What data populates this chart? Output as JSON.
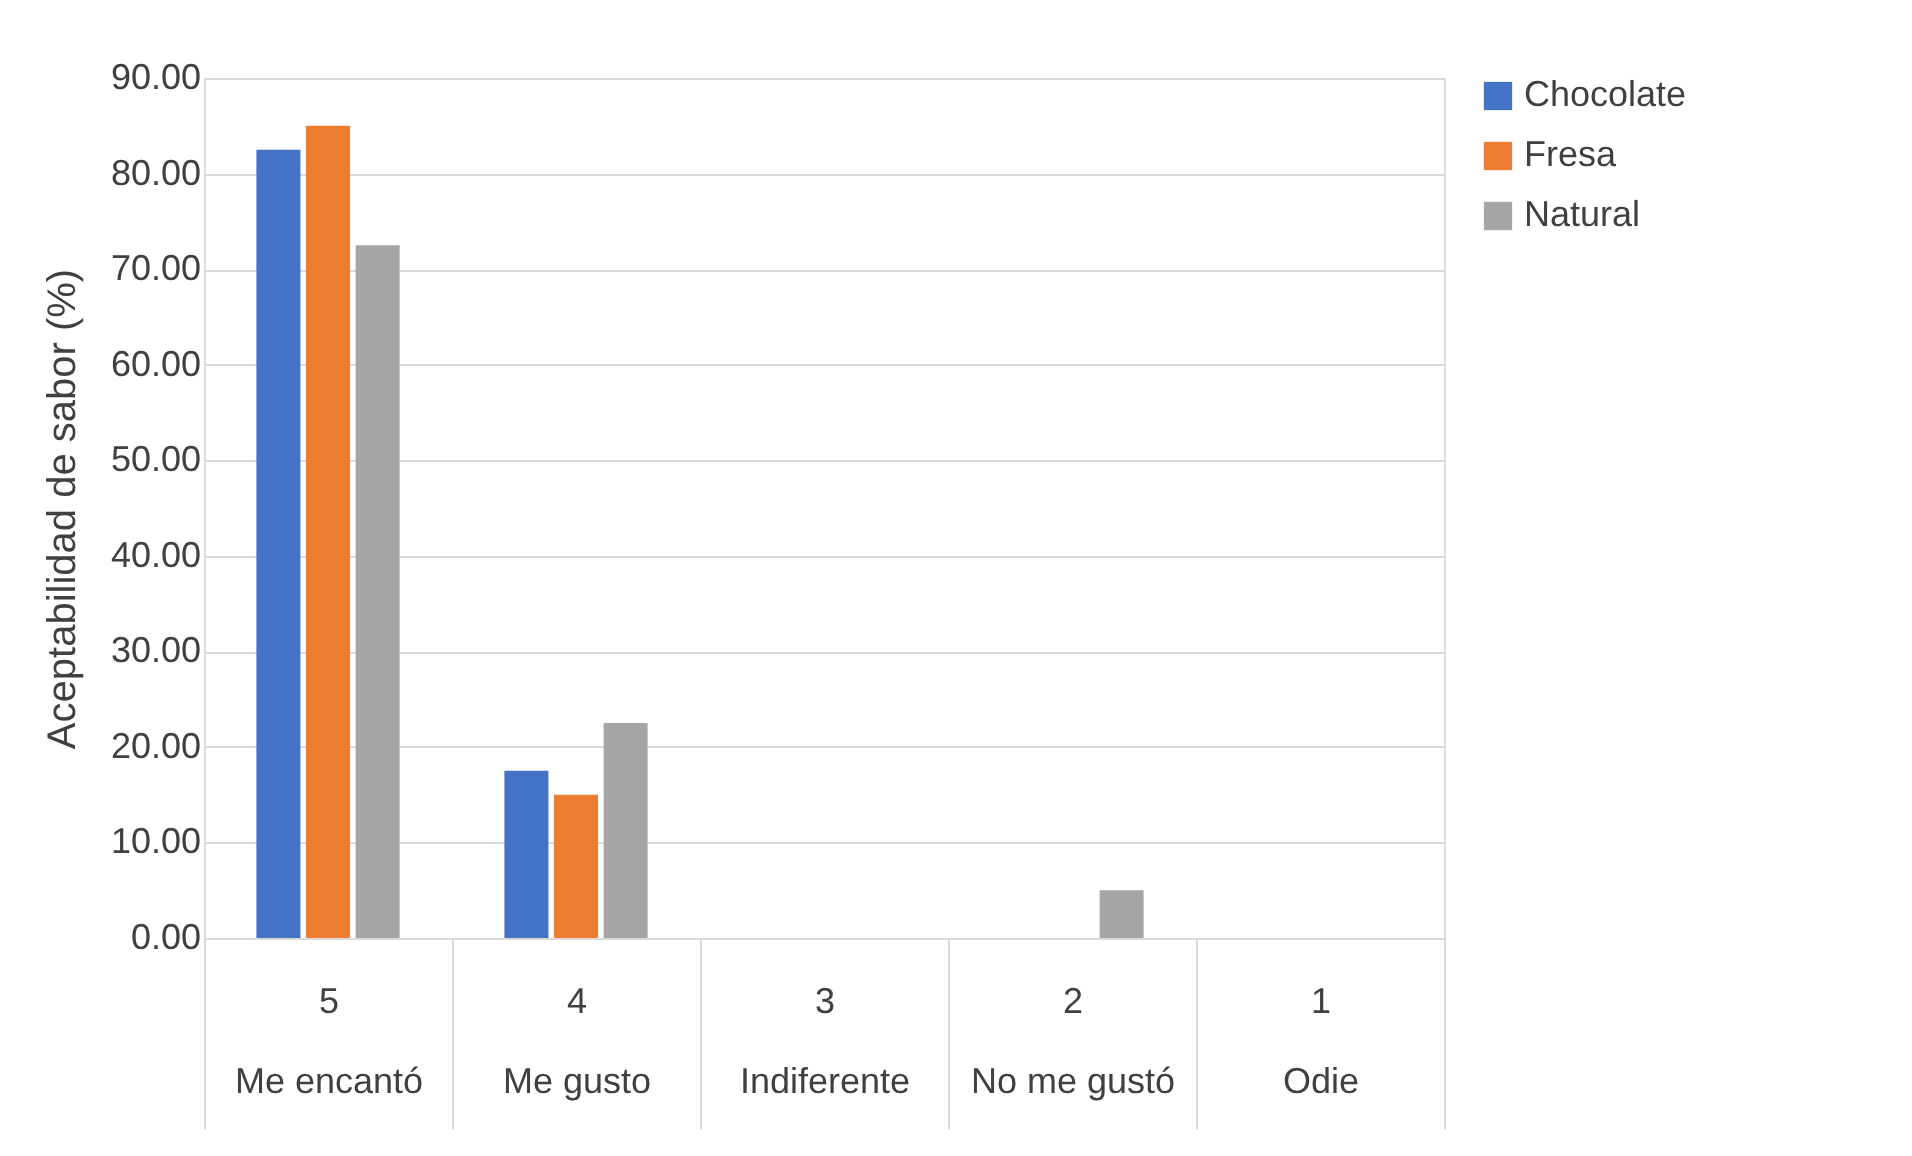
{
  "chart_data": {
    "type": "bar",
    "ylabel": "Aceptabilidad de sabor (%)",
    "categories": [
      "5\nMe encantó",
      "4\nMe gusto",
      "3\nIndiferente",
      "2\nNo me gustó",
      "1\nOdie"
    ],
    "series": [
      {
        "name": "Chocolate",
        "color": "#4472c4",
        "values": [
          82.5,
          17.5,
          0,
          0,
          0
        ]
      },
      {
        "name": "Fresa",
        "color": "#ed7d31",
        "values": [
          85,
          15,
          0,
          0,
          0
        ]
      },
      {
        "name": "Natural",
        "color": "#a5a5a5",
        "values": [
          72.5,
          22.5,
          0,
          5,
          0
        ]
      }
    ],
    "ylim": [
      0,
      90
    ],
    "yticks": [
      {
        "value": 0,
        "label": "0.00"
      },
      {
        "value": 10,
        "label": "10.00"
      },
      {
        "value": 20,
        "label": "20.00"
      },
      {
        "value": 30,
        "label": "30.00"
      },
      {
        "value": 40,
        "label": "40.00"
      },
      {
        "value": 50,
        "label": "50.00"
      },
      {
        "value": 60,
        "label": "60.00"
      },
      {
        "value": 70,
        "label": "70.00"
      },
      {
        "value": 80,
        "label": "80.00"
      },
      {
        "value": 90,
        "label": "90.00"
      }
    ],
    "grid": "y",
    "legend": "right"
  }
}
